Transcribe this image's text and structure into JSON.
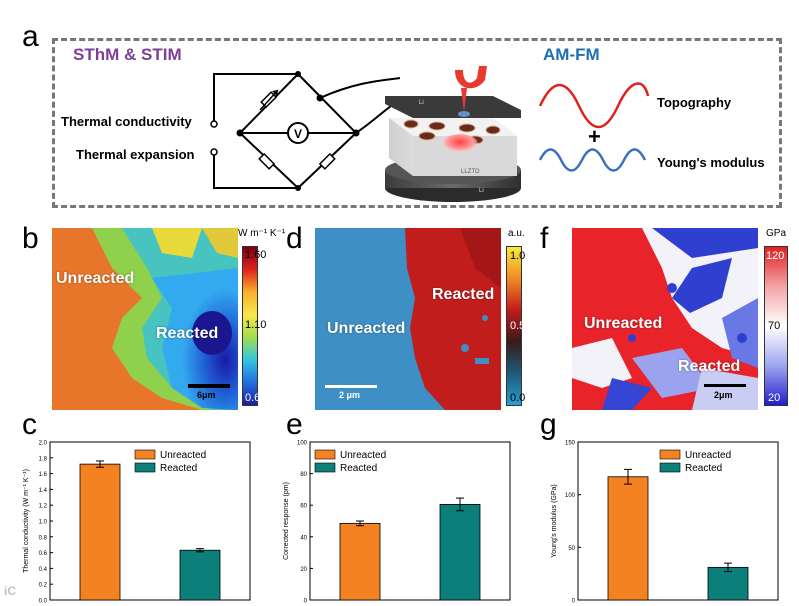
{
  "panel_a": {
    "letter": "a",
    "left_title": "SThM & STIM",
    "right_title": "AM-FM",
    "input_labels": [
      "Thermal conductivity",
      "Thermal expansion"
    ],
    "meter_symbol": "V",
    "sample_labels": {
      "top": "Li",
      "middle": "LLZTO",
      "bottom": "Li"
    },
    "wave_labels": {
      "top": "Topography",
      "plus": "+",
      "bottom": "Young's modulus"
    },
    "colors": {
      "title_left": "#7b3f98",
      "title_right": "#1f6fb2",
      "wave_top": "#e0201c",
      "wave_bottom": "#3b6fc1"
    }
  },
  "panel_b": {
    "letter": "b",
    "labels": {
      "unreacted": "Unreacted",
      "reacted": "Reacted"
    },
    "scalebar": "6μm",
    "colorbar": {
      "title": "W m⁻¹ K⁻¹",
      "ticks": [
        "1.60",
        "1.10",
        "0.60"
      ]
    }
  },
  "panel_d": {
    "letter": "d",
    "labels": {
      "unreacted": "Unreacted",
      "reacted": "Reacted"
    },
    "scalebar": "2 μm",
    "colorbar": {
      "title": "a.u.",
      "ticks": [
        "1.0",
        "0.5",
        "0.0"
      ]
    }
  },
  "panel_f": {
    "letter": "f",
    "labels": {
      "unreacted": "Unreacted",
      "reacted": "Reacted"
    },
    "scalebar": "2μm",
    "colorbar": {
      "title": "GPa",
      "ticks": [
        "120",
        "70",
        "20"
      ]
    }
  },
  "chart_data": [
    {
      "panel": "c",
      "type": "bar",
      "categories": [
        "Unreacted",
        "Reacted"
      ],
      "values": [
        1.72,
        0.63
      ],
      "errors": [
        0.04,
        0.02
      ],
      "colors": [
        "#f58220",
        "#0d7f7a"
      ],
      "ylabel": "Thermal conductivity (W m⁻¹ K⁻¹)",
      "xlabel": "",
      "ylim": [
        0,
        2.0
      ],
      "yticks": [
        "0.0",
        "0.2",
        "0.4",
        "0.6",
        "0.8",
        "1.0",
        "1.2",
        "1.4",
        "1.6",
        "1.8",
        "2.0"
      ],
      "legend": [
        "Unreacted",
        "Reacted"
      ],
      "legend_position": "top-right"
    },
    {
      "panel": "e",
      "type": "bar",
      "categories": [
        "Unreacted",
        "Reacted"
      ],
      "values": [
        48.5,
        60.5
      ],
      "errors": [
        1.5,
        4.0
      ],
      "colors": [
        "#f58220",
        "#0d7f7a"
      ],
      "ylabel": "Corrected response (pm)",
      "xlabel": "",
      "ylim": [
        0,
        100
      ],
      "yticks": [
        "0",
        "20",
        "40",
        "60",
        "80",
        "100"
      ],
      "legend": [
        "Unreacted",
        "Reacted"
      ],
      "legend_position": "top-left"
    },
    {
      "panel": "g",
      "type": "bar",
      "categories": [
        "Unreacted",
        "Reacted"
      ],
      "values": [
        117,
        31
      ],
      "errors": [
        7,
        4
      ],
      "colors": [
        "#f58220",
        "#0d7f7a"
      ],
      "ylabel": "Young's modulus (GPa)",
      "xlabel": "",
      "ylim": [
        0,
        150
      ],
      "yticks": [
        "0",
        "50",
        "100",
        "150"
      ],
      "legend": [
        "Unreacted",
        "Reacted"
      ],
      "legend_position": "top-right"
    }
  ]
}
